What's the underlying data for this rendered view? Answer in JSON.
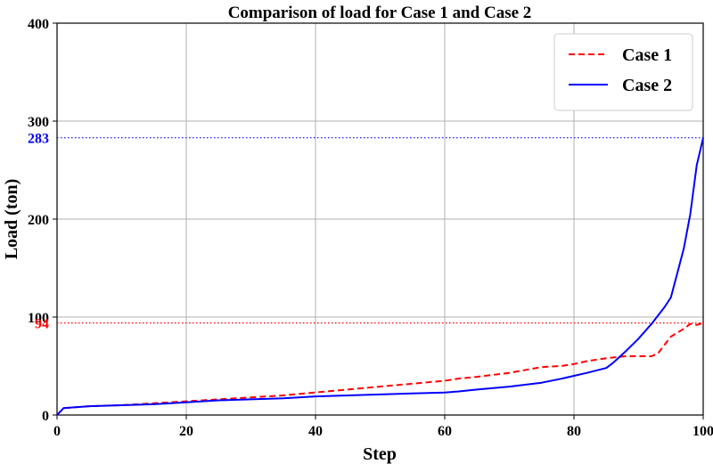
{
  "chart_data": {
    "type": "line",
    "title": "Comparison of load for Case 1 and Case 2",
    "xlabel": "Step",
    "ylabel": "Load (ton)",
    "xlim": [
      0,
      100
    ],
    "ylim": [
      0,
      400
    ],
    "xticks": [
      0,
      20,
      40,
      60,
      80,
      100
    ],
    "yticks": [
      0,
      100,
      200,
      300,
      400
    ],
    "grid": true,
    "legend_position": "top-right",
    "series": [
      {
        "name": "Case 1",
        "color": "#ff0000",
        "style": "dashed",
        "x": [
          0,
          1,
          5,
          10,
          15,
          20,
          25,
          30,
          35,
          40,
          45,
          50,
          55,
          60,
          62,
          65,
          70,
          75,
          78,
          80,
          82,
          85,
          88,
          90,
          92,
          93,
          95,
          97,
          98,
          99,
          100
        ],
        "y": [
          0,
          7,
          9,
          10,
          12,
          14,
          16,
          18,
          20,
          23,
          26,
          29,
          32,
          35,
          37,
          39,
          43,
          49,
          50,
          52,
          55,
          58,
          60,
          60,
          60,
          63,
          80,
          88,
          93,
          92,
          94
        ]
      },
      {
        "name": "Case 2",
        "color": "#0000ff",
        "style": "solid",
        "x": [
          0,
          1,
          5,
          10,
          15,
          20,
          25,
          30,
          35,
          40,
          45,
          50,
          55,
          60,
          62,
          65,
          70,
          75,
          78,
          80,
          82,
          85,
          86,
          88,
          90,
          92,
          94,
          95,
          96,
          97,
          98,
          99,
          100
        ],
        "y": [
          0,
          7,
          9,
          10,
          11,
          13,
          15,
          16,
          17,
          19,
          20,
          21,
          22,
          23,
          24,
          26,
          29,
          33,
          37,
          40,
          43,
          48,
          53,
          65,
          78,
          93,
          110,
          120,
          145,
          170,
          205,
          255,
          283
        ]
      }
    ],
    "annotations": [
      {
        "label": "283",
        "value": 283,
        "color": "#0000ff",
        "style": "dotted"
      },
      {
        "label": "94",
        "value": 94,
        "color": "#ff0000",
        "style": "dotted"
      }
    ]
  }
}
